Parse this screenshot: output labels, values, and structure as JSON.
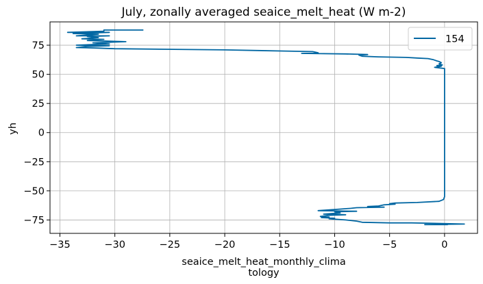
{
  "chart_data": {
    "type": "line",
    "title": "July, zonally averaged seaice_melt_heat (W m-2)",
    "xlabel_lines": [
      "seaice_melt_heat_monthly_clima",
      "tology"
    ],
    "ylabel": "yh",
    "xlim": [
      -35.9,
      3.0
    ],
    "ylim": [
      -86.5,
      95.0
    ],
    "xticks": [
      -35,
      -30,
      -25,
      -20,
      -15,
      -10,
      -5,
      0
    ],
    "xtick_labels": [
      "−35",
      "−30",
      "−25",
      "−20",
      "−15",
      "−10",
      "−5",
      "0"
    ],
    "yticks": [
      -75,
      -50,
      -25,
      0,
      25,
      50,
      75
    ],
    "ytick_labels": [
      "−75",
      "−50",
      "−25",
      "0",
      "25",
      "50",
      "75"
    ],
    "grid": true,
    "legend_position": "top-right",
    "series_color": "#0066a2",
    "series": [
      {
        "name": "154",
        "points": [
          [
            -27.4,
            88.0
          ],
          [
            -31.0,
            88.0
          ],
          [
            -31.0,
            87.0
          ],
          [
            -34.3,
            86.0
          ],
          [
            -30.5,
            86.0
          ],
          [
            -33.8,
            85.0
          ],
          [
            -31.5,
            84.5
          ],
          [
            -33.5,
            83.0
          ],
          [
            -30.5,
            83.0
          ],
          [
            -32.5,
            82.5
          ],
          [
            -31.5,
            81.5
          ],
          [
            -33.0,
            80.5
          ],
          [
            -31.0,
            80.0
          ],
          [
            -32.5,
            79.0
          ],
          [
            -29.0,
            78.0
          ],
          [
            -32.0,
            77.0
          ],
          [
            -30.5,
            76.0
          ],
          [
            -33.5,
            75.0
          ],
          [
            -30.5,
            74.5
          ],
          [
            -32.5,
            74.0
          ],
          [
            -33.5,
            73.0
          ],
          [
            -31.5,
            72.5
          ],
          [
            -30.0,
            72.0
          ],
          [
            -20.0,
            71.0
          ],
          [
            -14.5,
            70.0
          ],
          [
            -12.0,
            69.5
          ],
          [
            -11.5,
            68.5
          ],
          [
            -13.0,
            68.0
          ],
          [
            -9.0,
            67.5
          ],
          [
            -7.0,
            67.0
          ],
          [
            -7.8,
            66.5
          ],
          [
            -7.5,
            65.5
          ],
          [
            -6.0,
            65.0
          ],
          [
            -3.5,
            64.5
          ],
          [
            -2.5,
            64.0
          ],
          [
            -1.5,
            63.5
          ],
          [
            -1.0,
            62.5
          ],
          [
            -0.7,
            61.5
          ],
          [
            -0.5,
            61.0
          ],
          [
            -0.3,
            60.0
          ],
          [
            -0.5,
            59.0
          ],
          [
            -0.2,
            58.0
          ],
          [
            -0.7,
            57.5
          ],
          [
            -0.3,
            57.0
          ],
          [
            -0.9,
            56.0
          ],
          [
            -0.5,
            55.5
          ],
          [
            0.0,
            55.0
          ],
          [
            0.0,
            -55.0
          ],
          [
            -0.1,
            -57.5
          ],
          [
            -0.5,
            -59.0
          ],
          [
            -2.5,
            -60.0
          ],
          [
            -4.5,
            -60.5
          ],
          [
            -5.0,
            -61.0
          ],
          [
            -4.5,
            -61.5
          ],
          [
            -5.5,
            -62.0
          ],
          [
            -6.0,
            -63.0
          ],
          [
            -7.0,
            -63.5
          ],
          [
            -5.5,
            -64.0
          ],
          [
            -8.0,
            -64.5
          ],
          [
            -8.5,
            -65.0
          ],
          [
            -10.0,
            -66.0
          ],
          [
            -11.5,
            -67.0
          ],
          [
            -8.0,
            -67.5
          ],
          [
            -10.0,
            -68.0
          ],
          [
            -9.5,
            -69.0
          ],
          [
            -11.0,
            -70.0
          ],
          [
            -9.0,
            -70.5
          ],
          [
            -10.5,
            -71.0
          ],
          [
            -11.3,
            -72.0
          ],
          [
            -10.5,
            -72.5
          ],
          [
            -11.2,
            -73.0
          ],
          [
            -10.0,
            -73.5
          ],
          [
            -10.5,
            -74.0
          ],
          [
            -9.0,
            -75.0
          ],
          [
            -8.0,
            -76.0
          ],
          [
            -7.5,
            -77.0
          ],
          [
            -5.0,
            -77.5
          ],
          [
            -3.0,
            -77.5
          ],
          [
            -0.5,
            -78.0
          ],
          [
            1.8,
            -78.5
          ],
          [
            -1.8,
            -79.0
          ],
          [
            0.3,
            -79.0
          ]
        ]
      }
    ]
  }
}
